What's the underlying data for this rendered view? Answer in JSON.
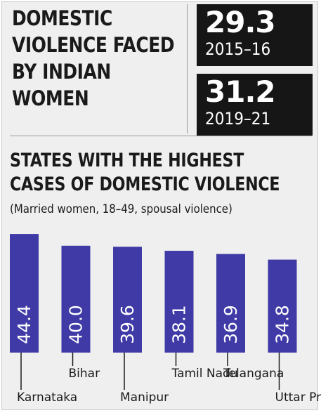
{
  "headline": {
    "lines": [
      "DOMESTIC",
      "VIOLENCE FACED",
      "BY INDIAN",
      "WOMEN"
    ]
  },
  "stats": [
    {
      "value": "29.3",
      "period": "2015–16"
    },
    {
      "value": "31.2",
      "period": "2019–21"
    }
  ],
  "colors": {
    "bar": "#3f3aa6",
    "dark_box": "#161616",
    "background": "#efefef"
  },
  "chart_data": {
    "type": "bar",
    "title": "STATES WITH THE HIGHEST CASES OF DOMESTIC VIOLENCE",
    "title_lines": [
      "STATES WITH THE HIGHEST",
      "CASES OF DOMESTIC VIOLENCE"
    ],
    "subtitle": "(Married women, 18–49, spousal violence)",
    "categories": [
      "Karnataka",
      "Bihar",
      "Manipur",
      "Tamil Nadu",
      "Telangana",
      "Uttar Pradesh"
    ],
    "values": [
      44.4,
      40.0,
      39.6,
      38.1,
      36.9,
      34.8
    ],
    "value_labels": [
      "44.4",
      "40.0",
      "39.6",
      "38.1",
      "36.9",
      "34.8"
    ],
    "label_rows": [
      "low",
      "high",
      "low",
      "high",
      "high",
      "low"
    ],
    "ylim": [
      0,
      46
    ],
    "grid": false,
    "legend": "none"
  }
}
